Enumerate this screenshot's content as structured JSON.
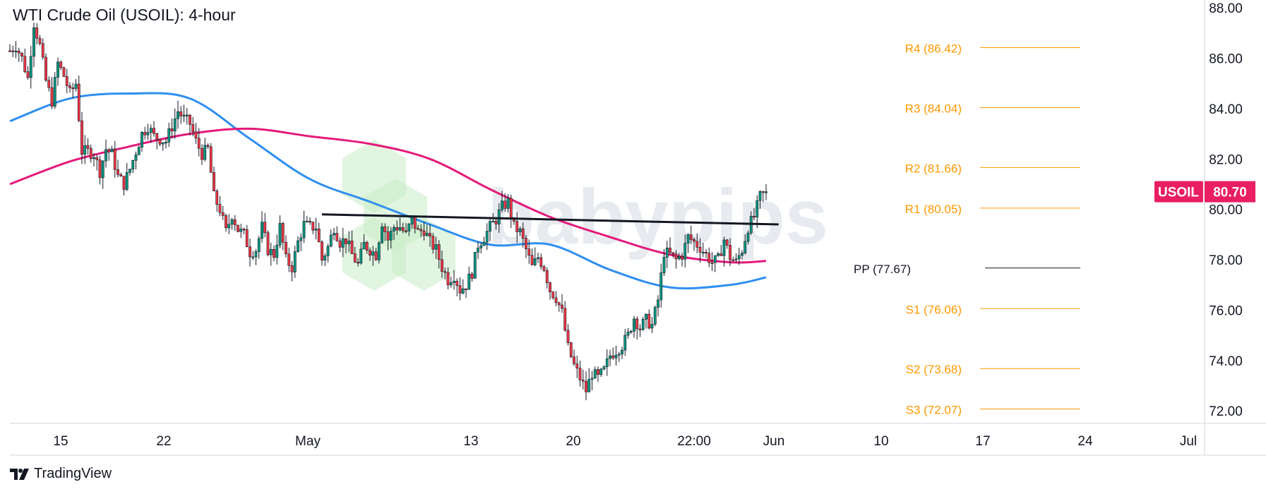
{
  "header": {
    "title": "WTI Crude Oil (USOIL): 4-hour"
  },
  "footer": {
    "brand": "TradingView",
    "logo_icon": "tradingview-logo-icon"
  },
  "watermark": {
    "text": "babypips"
  },
  "price_tag": {
    "symbol": "USOIL",
    "price": "80.70",
    "color": "#e91e63"
  },
  "colors": {
    "up": "#089981",
    "down": "#f23645",
    "ma_fast": "#2f8ff0",
    "ma_slow": "#e5197a",
    "pivots": "#ff9800",
    "trendline": "#131722",
    "grid": "#e6e8ee",
    "axis_text": "#131722",
    "watermark": "#c9ecc6"
  },
  "chart_data": {
    "type": "candlestick",
    "title": "WTI Crude Oil (USOIL): 4-hour",
    "y_axis": {
      "min": 71.5,
      "max": 88.2,
      "ticks": [
        "72.00",
        "74.00",
        "76.00",
        "78.00",
        "80.00",
        "82.00",
        "84.00",
        "86.00",
        "88.00"
      ],
      "position": "right"
    },
    "x_axis": {
      "ticks": [
        "15",
        "22",
        "May",
        "13",
        "20",
        "22:00",
        "Jun",
        "10",
        "17",
        "24",
        "Jul"
      ]
    },
    "grid": false,
    "price_path": [
      [
        0,
        86.3
      ],
      [
        2,
        86.5
      ],
      [
        4,
        86.0
      ],
      [
        6,
        85.2
      ],
      [
        8,
        87.4
      ],
      [
        10,
        86.5
      ],
      [
        12,
        85.1
      ],
      [
        14,
        84.3
      ],
      [
        16,
        85.8
      ],
      [
        18,
        85.3
      ],
      [
        20,
        84.6
      ],
      [
        22,
        85.0
      ],
      [
        24,
        82.3
      ],
      [
        26,
        82.3
      ],
      [
        28,
        82.2
      ],
      [
        30,
        81.5
      ],
      [
        32,
        82.4
      ],
      [
        34,
        82.2
      ],
      [
        36,
        81.3
      ],
      [
        38,
        81.0
      ],
      [
        40,
        81.6
      ],
      [
        42,
        82.3
      ],
      [
        44,
        83.0
      ],
      [
        46,
        83.3
      ],
      [
        48,
        82.9
      ],
      [
        50,
        82.8
      ],
      [
        52,
        82.7
      ],
      [
        54,
        83.3
      ],
      [
        56,
        83.9
      ],
      [
        58,
        83.6
      ],
      [
        60,
        83.4
      ],
      [
        62,
        82.7
      ],
      [
        64,
        82.2
      ],
      [
        66,
        82.4
      ],
      [
        68,
        80.5
      ],
      [
        70,
        80.0
      ],
      [
        72,
        79.1
      ],
      [
        74,
        79.8
      ],
      [
        76,
        79.2
      ],
      [
        78,
        79.0
      ],
      [
        80,
        78.3
      ],
      [
        82,
        78.4
      ],
      [
        84,
        79.3
      ],
      [
        86,
        78.4
      ],
      [
        88,
        78.2
      ],
      [
        90,
        79.3
      ],
      [
        92,
        78.0
      ],
      [
        94,
        77.7
      ],
      [
        96,
        78.7
      ],
      [
        98,
        79.4
      ],
      [
        100,
        79.3
      ],
      [
        102,
        79.3
      ],
      [
        104,
        78.0
      ],
      [
        106,
        78.5
      ],
      [
        108,
        79.3
      ],
      [
        110,
        78.7
      ],
      [
        112,
        78.8
      ],
      [
        114,
        78.2
      ],
      [
        116,
        77.8
      ],
      [
        118,
        78.6
      ],
      [
        120,
        78.4
      ],
      [
        122,
        78.2
      ],
      [
        124,
        79.5
      ],
      [
        126,
        78.8
      ],
      [
        128,
        79.3
      ],
      [
        130,
        79.3
      ],
      [
        132,
        79.0
      ],
      [
        134,
        79.6
      ],
      [
        136,
        79.1
      ],
      [
        138,
        79.2
      ],
      [
        140,
        78.7
      ],
      [
        142,
        78.4
      ],
      [
        144,
        77.7
      ],
      [
        146,
        77.2
      ],
      [
        148,
        77.4
      ],
      [
        150,
        76.8
      ],
      [
        152,
        77.0
      ],
      [
        154,
        77.5
      ],
      [
        156,
        78.6
      ],
      [
        158,
        78.9
      ],
      [
        160,
        79.3
      ],
      [
        162,
        79.6
      ],
      [
        164,
        80.1
      ],
      [
        166,
        80.3
      ],
      [
        168,
        79.3
      ],
      [
        170,
        79.1
      ],
      [
        172,
        78.4
      ],
      [
        174,
        77.7
      ],
      [
        176,
        78.1
      ],
      [
        178,
        77.7
      ],
      [
        180,
        76.8
      ],
      [
        182,
        76.5
      ],
      [
        184,
        75.9
      ],
      [
        186,
        74.5
      ],
      [
        188,
        73.8
      ],
      [
        190,
        73.3
      ],
      [
        192,
        72.8
      ],
      [
        194,
        73.5
      ],
      [
        196,
        73.3
      ],
      [
        198,
        73.6
      ],
      [
        200,
        74.2
      ],
      [
        202,
        74.4
      ],
      [
        204,
        74.6
      ],
      [
        206,
        75.0
      ],
      [
        208,
        75.7
      ],
      [
        210,
        75.3
      ],
      [
        212,
        75.6
      ],
      [
        214,
        75.4
      ],
      [
        216,
        76.4
      ],
      [
        218,
        78.3
      ],
      [
        220,
        78.2
      ],
      [
        222,
        78.0
      ],
      [
        224,
        78.2
      ],
      [
        226,
        78.9
      ],
      [
        228,
        78.7
      ],
      [
        230,
        78.5
      ],
      [
        232,
        78.2
      ],
      [
        234,
        77.9
      ],
      [
        236,
        78.0
      ],
      [
        238,
        78.8
      ],
      [
        240,
        78.1
      ],
      [
        242,
        77.9
      ],
      [
        244,
        78.4
      ],
      [
        246,
        79.3
      ],
      [
        248,
        79.7
      ],
      [
        250,
        80.5
      ],
      [
        252,
        80.7
      ]
    ],
    "series": [
      {
        "name": "",
        "role": "moving-average-fast",
        "x": [
          0,
          20,
          40,
          60,
          80,
          100,
          120,
          140,
          160,
          180,
          200,
          220,
          240,
          252
        ],
        "y": [
          83.5,
          84.4,
          84.6,
          84.4,
          82.8,
          81.2,
          80.3,
          79.4,
          78.6,
          78.6,
          77.6,
          76.9,
          77.0,
          77.3
        ]
      },
      {
        "name": "",
        "role": "moving-average-slow",
        "x": [
          0,
          20,
          40,
          60,
          80,
          100,
          120,
          140,
          160,
          180,
          200,
          220,
          240,
          252
        ],
        "y": [
          81.0,
          81.9,
          82.5,
          83.0,
          83.2,
          82.9,
          82.6,
          82.0,
          80.8,
          79.7,
          78.9,
          78.2,
          77.9,
          77.95
        ]
      }
    ],
    "levels": [
      {
        "label": "R4 (86.42)",
        "value": 86.42
      },
      {
        "label": "R3 (84.04)",
        "value": 84.04
      },
      {
        "label": "R2 (81.66)",
        "value": 81.66
      },
      {
        "label": "R1 (80.05)",
        "value": 80.05
      },
      {
        "label": "PP (77.67)",
        "value": 77.67
      },
      {
        "label": "S1 (76.06)",
        "value": 76.06
      },
      {
        "label": "S2 (73.68)",
        "value": 73.68
      },
      {
        "label": "S3 (72.07)",
        "value": 72.07
      }
    ],
    "trendline": {
      "x": [
        104,
        255
      ],
      "y": [
        79.8,
        79.4
      ]
    }
  }
}
